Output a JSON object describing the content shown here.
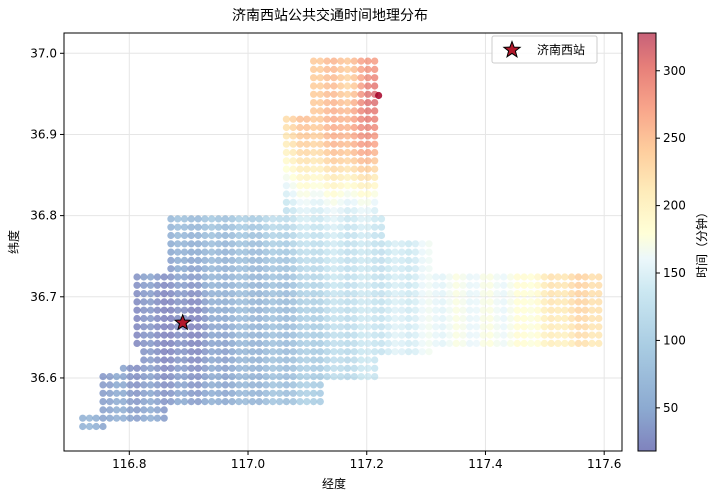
{
  "chart_data": {
    "type": "scatter",
    "title": "济南西站公共交通时间地理分布",
    "xlabel": "经度",
    "ylabel": "纬度",
    "xlim": [
      116.69,
      117.63
    ],
    "ylim": [
      36.51,
      37.025
    ],
    "xticks": [
      116.8,
      117.0,
      117.2,
      117.4,
      117.6
    ],
    "xtick_labels": [
      "116.8",
      "117.0",
      "117.2",
      "117.4",
      "117.6"
    ],
    "yticks": [
      36.6,
      36.7,
      36.8,
      36.9,
      37.0
    ],
    "ytick_labels": [
      "36.6",
      "36.7",
      "36.8",
      "36.9",
      "37.0"
    ],
    "grid": true,
    "legend": {
      "position": "upper-right",
      "entries": [
        "济南西站"
      ]
    },
    "colorbar": {
      "label": "时间（分钟）",
      "range": [
        18,
        328
      ],
      "ticks": [
        50,
        100,
        150,
        200,
        250,
        300
      ],
      "tick_labels": [
        "50",
        "100",
        "150",
        "200",
        "250",
        "300"
      ],
      "colormap": "RdYlBu_r"
    },
    "station": {
      "name": "济南西站",
      "lon": 116.89,
      "lat": 36.668,
      "marker": "star",
      "color": "#b2182b"
    },
    "series": [
      {
        "grid_step": 0.011,
        "regions": [
          {
            "lon": [
              116.72,
              116.76
            ],
            "lat": [
              36.535,
              36.56
            ]
          },
          {
            "lon": [
              116.75,
              116.86
            ],
            "lat": [
              36.55,
              36.61
            ]
          },
          {
            "lon": [
              116.79,
              117.13
            ],
            "lat": [
              36.565,
              36.62
            ]
          },
          {
            "lon": [
              116.82,
              117.22
            ],
            "lat": [
              36.6,
              36.68
            ]
          },
          {
            "lon": [
              116.84,
              117.12
            ],
            "lat": [
              36.63,
              36.71
            ]
          },
          {
            "lon": [
              116.81,
              117.55
            ],
            "lat": [
              36.64,
              36.73
            ]
          },
          {
            "lon": [
              116.86,
              117.31
            ],
            "lat": [
              36.63,
              36.77
            ]
          },
          {
            "lon": [
              116.87,
              117.23
            ],
            "lat": [
              36.77,
              36.805
            ]
          },
          {
            "lon": [
              117.06,
              117.22
            ],
            "lat": [
              36.78,
              36.92
            ]
          },
          {
            "lon": [
              117.11,
              117.22
            ],
            "lat": [
              36.88,
              37.0
            ]
          },
          {
            "lon": [
              117.32,
              117.6
            ],
            "lat": [
              36.64,
              36.73
            ]
          },
          {
            "lon": [
              117.55,
              117.6
            ],
            "lat": [
              36.66,
              36.72
            ]
          }
        ],
        "value_notes": [
          {
            "lon": 116.89,
            "lat": 36.668,
            "minutes": 20
          },
          {
            "lon": 117.0,
            "lat": 36.7,
            "minutes": 70
          },
          {
            "lon": 117.2,
            "lat": 36.75,
            "minutes": 130
          },
          {
            "lon": 117.4,
            "lat": 36.7,
            "minutes": 165
          },
          {
            "lon": 117.58,
            "lat": 36.72,
            "minutes": 230
          },
          {
            "lon": 117.17,
            "lat": 36.96,
            "minutes": 235
          },
          {
            "lon": 117.22,
            "lat": 36.948,
            "minutes": 328
          }
        ]
      }
    ]
  }
}
